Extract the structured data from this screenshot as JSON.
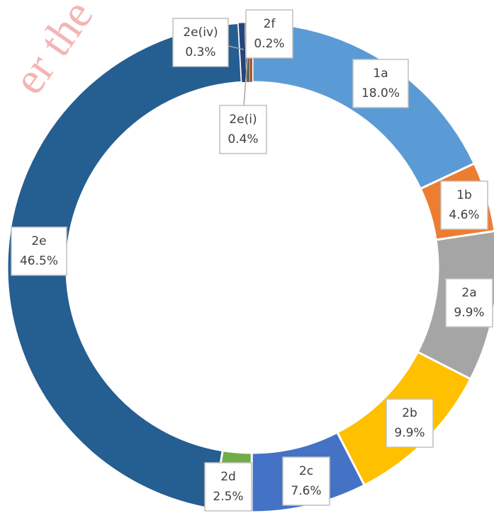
{
  "watermark": "er the",
  "chart_data": {
    "type": "donut",
    "categories": [
      "1a",
      "1b",
      "2a",
      "2b",
      "2c",
      "2d",
      "2e",
      "2e(i)",
      "2e(iv)",
      "2f"
    ],
    "values": [
      18.0,
      4.6,
      9.9,
      9.9,
      7.6,
      2.5,
      46.5,
      0.4,
      0.3,
      0.2
    ],
    "value_labels": [
      "18.0%",
      "4.6%",
      "9.9%",
      "9.9%",
      "7.6%",
      "2.5%",
      "46.5%",
      "0.4%",
      "0.3%",
      "0.2%"
    ],
    "colors": [
      "#5b9bd5",
      "#ed7d31",
      "#a5a5a5",
      "#ffc000",
      "#4472c4",
      "#70ad47",
      "#255e91",
      "#264478",
      "#636363",
      "#9e480e"
    ]
  }
}
